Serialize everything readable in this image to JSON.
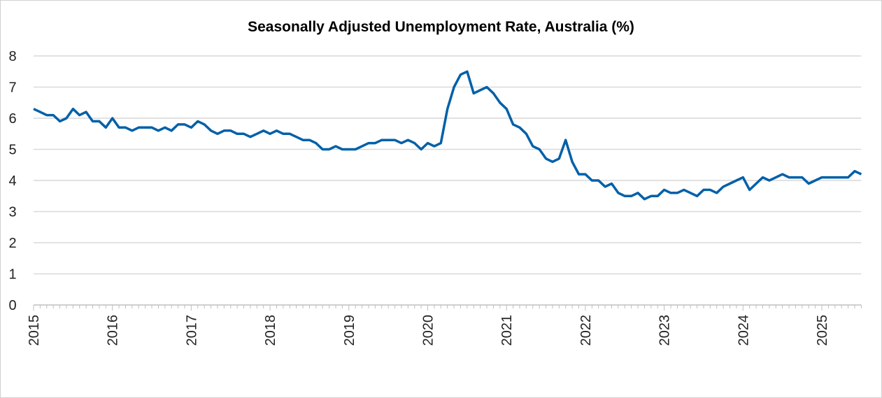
{
  "chart_data": {
    "type": "line",
    "title": "Seasonally Adjusted Unemployment Rate, Australia (%)",
    "xlabel": "",
    "ylabel": "",
    "ylim": [
      0,
      8
    ],
    "yticks": [
      0,
      1,
      2,
      3,
      4,
      5,
      6,
      7,
      8
    ],
    "xtick_labels": [
      "2015",
      "2016",
      "2017",
      "2018",
      "2019",
      "2020",
      "2021",
      "2022",
      "2023",
      "2024",
      "2025"
    ],
    "x_start": "2015-01",
    "x_end": "2025-07",
    "frequency": "monthly",
    "grid": true,
    "legend": "none",
    "line_color": "#0060A8",
    "series": [
      {
        "values": [
          6.3,
          6.2,
          6.1,
          6.1,
          5.9,
          6.0,
          6.3,
          6.1,
          6.2,
          5.9,
          5.9,
          5.7,
          6.0,
          5.7,
          5.7,
          5.6,
          5.7,
          5.7,
          5.7,
          5.6,
          5.7,
          5.6,
          5.8,
          5.8,
          5.7,
          5.9,
          5.8,
          5.6,
          5.5,
          5.6,
          5.6,
          5.5,
          5.5,
          5.4,
          5.5,
          5.6,
          5.5,
          5.6,
          5.5,
          5.5,
          5.4,
          5.3,
          5.3,
          5.2,
          5.0,
          5.0,
          5.1,
          5.0,
          5.0,
          5.0,
          5.1,
          5.2,
          5.2,
          5.3,
          5.3,
          5.3,
          5.2,
          5.3,
          5.2,
          5.0,
          5.2,
          5.1,
          5.2,
          6.3,
          7.0,
          7.4,
          7.5,
          6.8,
          6.9,
          7.0,
          6.8,
          6.5,
          6.3,
          5.8,
          5.7,
          5.5,
          5.1,
          5.0,
          4.7,
          4.6,
          4.7,
          5.3,
          4.6,
          4.2,
          4.2,
          4.0,
          4.0,
          3.8,
          3.9,
          3.6,
          3.5,
          3.5,
          3.6,
          3.4,
          3.5,
          3.5,
          3.7,
          3.6,
          3.6,
          3.7,
          3.6,
          3.5,
          3.7,
          3.7,
          3.6,
          3.8,
          3.9,
          4.0,
          4.1,
          3.7,
          3.9,
          4.1,
          4.0,
          4.1,
          4.2,
          4.1,
          4.1,
          4.1,
          3.9,
          4.0,
          4.1,
          4.1,
          4.1,
          4.1,
          4.1,
          4.3,
          4.2
        ]
      }
    ]
  }
}
